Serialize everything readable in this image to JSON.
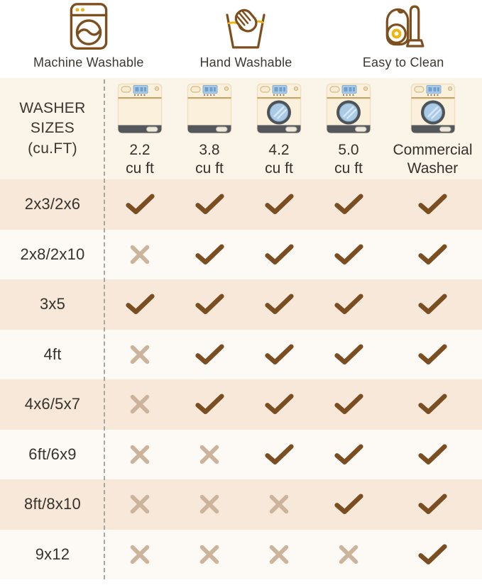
{
  "colors": {
    "page_bg": "#ffffff",
    "header_bg": "#fbf4e8",
    "row_shaded_bg": "#f8e8da",
    "row_plain_bg": "#fdfaf5",
    "check": "#7a4e20",
    "cross": "#ccb49c",
    "divider": "#aaa69e",
    "text_dark": "#3a362f",
    "icon_brown": "#7e4f1e",
    "icon_yellow": "#eeb511",
    "washer_body": "#faf0db",
    "washer_dark_gray": "#54585c",
    "washer_glass_blue": "#a9cbe5"
  },
  "legend": {
    "items": [
      {
        "icon": "washing-machine-icon",
        "label": "Machine Washable"
      },
      {
        "icon": "hand-wash-icon",
        "label": "Hand Washable"
      },
      {
        "icon": "vacuum-icon",
        "label": "Easy to Clean"
      }
    ]
  },
  "table": {
    "corner_title": "WASHER\nSIZES\n(cu.FT)",
    "columns": [
      {
        "washer_style": "top-load",
        "line1": "2.2",
        "line2": "cu ft"
      },
      {
        "washer_style": "top-load",
        "line1": "3.8",
        "line2": "cu ft"
      },
      {
        "washer_style": "front-load",
        "line1": "4.2",
        "line2": "cu ft"
      },
      {
        "washer_style": "front-load",
        "line1": "5.0",
        "line2": "cu ft"
      },
      {
        "washer_style": "front-load",
        "line1": "Commercial",
        "line2": "Washer"
      }
    ]
  },
  "chart_data": {
    "type": "table",
    "title": "",
    "legend": [
      "Machine Washable",
      "Hand Washable",
      "Easy to Clean"
    ],
    "corner_header": "WASHER SIZES (cu.FT)",
    "columns": [
      "2.2 cu ft",
      "3.8 cu ft",
      "4.2 cu ft",
      "5.0 cu ft",
      "Commercial Washer"
    ],
    "rows": [
      "2x3/2x6",
      "2x8/2x10",
      "3x5",
      "4ft",
      "4x6/5x7",
      "6ft/6x9",
      "8ft/8x10",
      "9x12"
    ],
    "values": [
      [
        "check",
        "check",
        "check",
        "check",
        "check"
      ],
      [
        "x",
        "check",
        "check",
        "check",
        "check"
      ],
      [
        "check",
        "check",
        "check",
        "check",
        "check"
      ],
      [
        "x",
        "check",
        "check",
        "check",
        "check"
      ],
      [
        "x",
        "check",
        "check",
        "check",
        "check"
      ],
      [
        "x",
        "x",
        "check",
        "check",
        "check"
      ],
      [
        "x",
        "x",
        "x",
        "check",
        "check"
      ],
      [
        "x",
        "x",
        "x",
        "x",
        "check"
      ]
    ]
  }
}
